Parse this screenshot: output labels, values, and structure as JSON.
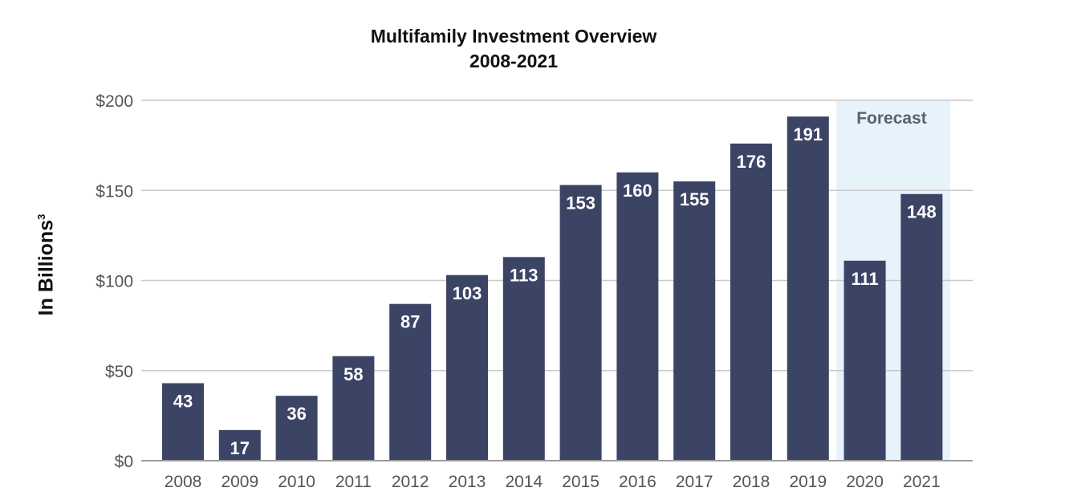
{
  "chart_data": {
    "type": "bar",
    "title": "Multifamily Investment Overview",
    "subtitle": "2008-2021",
    "ylabel": "In Billions",
    "ylabel_superscript": "3",
    "xlabel": "",
    "categories": [
      "2008",
      "2009",
      "2010",
      "2011",
      "2012",
      "2013",
      "2014",
      "2015",
      "2016",
      "2017",
      "2018",
      "2019",
      "2020",
      "2021"
    ],
    "values": [
      43,
      17,
      36,
      58,
      87,
      103,
      113,
      153,
      160,
      155,
      176,
      191,
      111,
      148
    ],
    "data_labels": [
      "43",
      "17",
      "36",
      "58",
      "87",
      "103",
      "113",
      "153",
      "160",
      "155",
      "176",
      "191",
      "111",
      "148"
    ],
    "ylim": [
      0,
      200
    ],
    "yticks": [
      0,
      50,
      100,
      150,
      200
    ],
    "ytick_labels": [
      "$0",
      "$50",
      "$100",
      "$150",
      "$200"
    ],
    "grid": true,
    "forecast": {
      "label": "Forecast",
      "categories": [
        "2020",
        "2021"
      ]
    },
    "colors": {
      "bar": "#3c4466",
      "forecast_band": "#e6f3fa",
      "grid": "#c8c8c8",
      "axis": "#9a9a9a",
      "tick_label": "#555555",
      "data_label": "#ffffff",
      "forecast_label": "#5a6070"
    }
  }
}
